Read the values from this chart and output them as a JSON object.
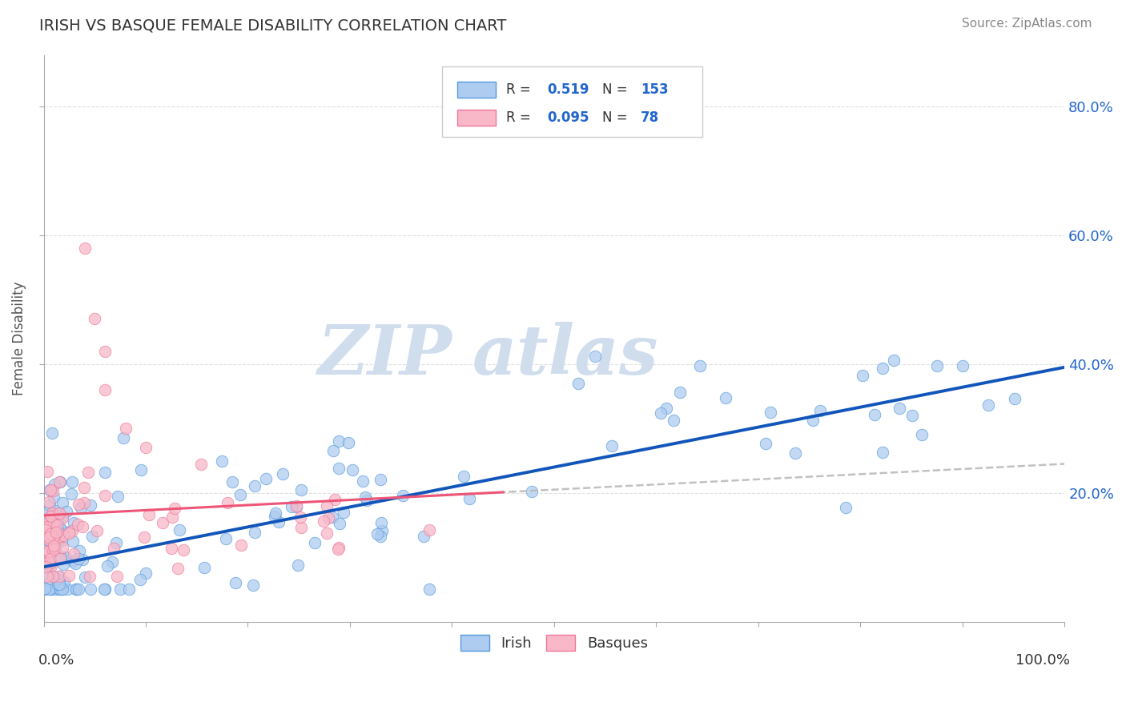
{
  "title": "IRISH VS BASQUE FEMALE DISABILITY CORRELATION CHART",
  "source": "Source: ZipAtlas.com",
  "ylabel": "Female Disability",
  "ytick_labels": [
    "20.0%",
    "40.0%",
    "60.0%",
    "80.0%"
  ],
  "ytick_values": [
    0.2,
    0.4,
    0.6,
    0.8
  ],
  "xlim": [
    0.0,
    1.0
  ],
  "ylim": [
    0.0,
    0.88
  ],
  "irish_R": 0.519,
  "irish_N": 153,
  "basque_R": 0.095,
  "basque_N": 78,
  "irish_color": "#aeccf0",
  "irish_edge_color": "#5599dd",
  "irish_line_color": "#1155bb",
  "basque_color": "#f8b8c8",
  "basque_edge_color": "#ee7799",
  "basque_line_color": "#ee5577",
  "dashed_line_color": "#bbbbbb",
  "background_color": "#ffffff",
  "title_color": "#333333",
  "legend_r_color": "#2266cc",
  "grid_color": "#cccccc",
  "watermark_zip_color": "#d0dded",
  "watermark_atlas_color": "#d0dded"
}
